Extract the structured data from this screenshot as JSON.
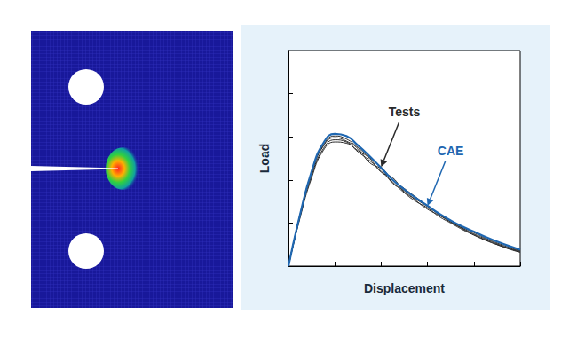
{
  "chart_data": {
    "type": "line",
    "x_label": "Displacement",
    "y_label": "Load",
    "x": [
      0,
      0.25,
      0.5,
      0.75,
      1.0,
      1.25,
      1.5,
      1.75,
      2.0,
      2.25,
      2.5,
      2.75,
      3.0,
      3.25,
      3.5,
      3.75,
      4.0,
      4.25,
      4.5,
      4.75,
      5.0
    ],
    "series": [
      {
        "name": "Tests",
        "color": "#2a2a2a",
        "values": [
          0,
          1.15,
          2.1,
          2.72,
          2.93,
          2.88,
          2.65,
          2.45,
          2.2,
          1.95,
          1.7,
          1.5,
          1.35,
          1.15,
          1.0,
          0.85,
          0.72,
          0.6,
          0.5,
          0.4,
          0.32
        ]
      },
      {
        "name": "Tests",
        "color": "#2a2a2a",
        "values": [
          0,
          1.18,
          2.15,
          2.78,
          2.98,
          2.9,
          2.72,
          2.4,
          2.25,
          1.92,
          1.75,
          1.52,
          1.32,
          1.18,
          1.02,
          0.88,
          0.75,
          0.63,
          0.52,
          0.42,
          0.35
        ]
      },
      {
        "name": "Tests",
        "color": "#2a2a2a",
        "values": [
          0,
          1.12,
          2.05,
          2.68,
          2.88,
          2.85,
          2.68,
          2.5,
          2.18,
          2.05,
          1.72,
          1.55,
          1.38,
          1.2,
          1.05,
          0.9,
          0.78,
          0.65,
          0.54,
          0.44,
          0.36
        ]
      },
      {
        "name": "Tests",
        "color": "#2a2a2a",
        "values": [
          0,
          1.2,
          2.18,
          2.8,
          3.02,
          2.95,
          2.75,
          2.52,
          2.3,
          2.0,
          1.8,
          1.6,
          1.4,
          1.2,
          1.03,
          0.87,
          0.73,
          0.61,
          0.5,
          0.41,
          0.33
        ]
      },
      {
        "name": "CAE",
        "color": "#1f67b1",
        "values": [
          0,
          1.2,
          2.2,
          2.85,
          3.07,
          3.02,
          2.8,
          2.55,
          2.28,
          2.0,
          1.78,
          1.58,
          1.4,
          1.22,
          1.06,
          0.92,
          0.8,
          0.68,
          0.57,
          0.47,
          0.38
        ]
      }
    ],
    "annotations": [
      {
        "text": "Tests",
        "x": 2.0,
        "y": 2.3
      },
      {
        "text": "CAE",
        "x": 3.0,
        "y": 1.4
      }
    ],
    "xlim": [
      0,
      5
    ],
    "xticks": [
      0,
      1,
      2,
      3,
      4,
      5
    ],
    "ylim": [
      0,
      5
    ],
    "yticks": [
      0,
      1,
      2,
      3,
      4,
      5
    ],
    "grid": false,
    "tick_labels": false
  }
}
